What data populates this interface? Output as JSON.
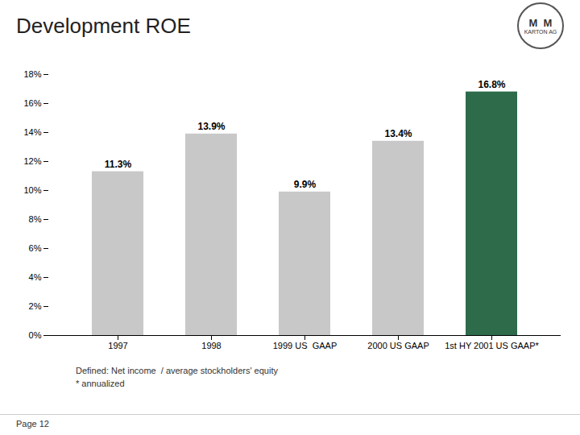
{
  "chart_data": {
    "type": "bar",
    "title": "Development ROE",
    "categories": [
      "1997",
      "1998",
      "1999 US  GAAP",
      "2000 US GAAP",
      "1st HY 2001 US GAAP*"
    ],
    "values": [
      11.3,
      13.9,
      9.9,
      13.4,
      16.8
    ],
    "value_labels": [
      "11.3%",
      "13.9%",
      "9.9%",
      "13.4%",
      "16.8%"
    ],
    "colors": [
      "#c8c8c8",
      "#c8c8c8",
      "#c8c8c8",
      "#c8c8c8",
      "#2d6b4a"
    ],
    "ylim": [
      0,
      18
    ],
    "yticks": [
      {
        "value": 0,
        "label": "0%"
      },
      {
        "value": 2,
        "label": "2%"
      },
      {
        "value": 4,
        "label": "4%"
      },
      {
        "value": 6,
        "label": "6%"
      },
      {
        "value": 8,
        "label": "8%"
      },
      {
        "value": 10,
        "label": "10%"
      },
      {
        "value": 12,
        "label": "12%"
      },
      {
        "value": 14,
        "label": "14%"
      },
      {
        "value": 16,
        "label": "16%"
      },
      {
        "value": 18,
        "label": "18%"
      }
    ],
    "grid": false,
    "data_labels": true,
    "annotations": [
      "Defined: Net income  / average stockholders' equity",
      "* annualized",
      "Page 12",
      "M  M",
      "KARTON AG"
    ]
  }
}
